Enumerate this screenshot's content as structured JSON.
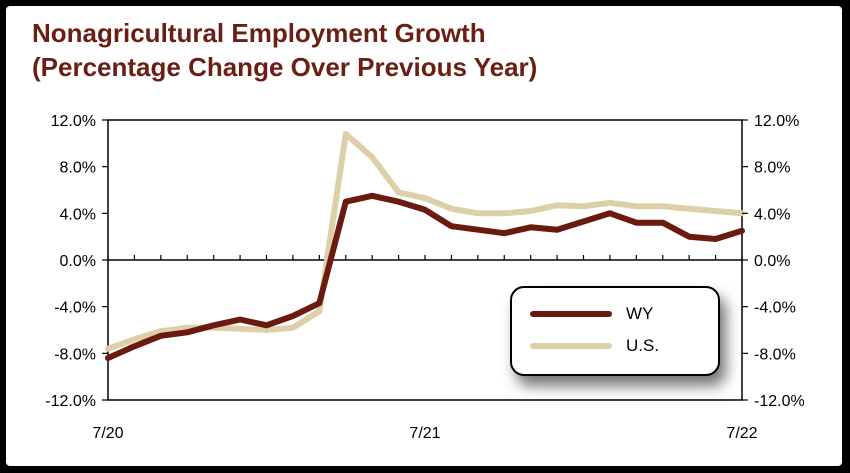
{
  "chart_data": {
    "type": "line",
    "title": "Nonagricultural Employment Growth",
    "subtitle": "(Percentage Change Over Previous Year)",
    "xlabel": "",
    "ylabel": "",
    "x": [
      0,
      1,
      2,
      3,
      4,
      5,
      6,
      7,
      8,
      9,
      10,
      11,
      12,
      13,
      14,
      15,
      16,
      17,
      18,
      19,
      20,
      21,
      22,
      23,
      24
    ],
    "x_tick_labels": [
      {
        "x": 0,
        "label": "7/20"
      },
      {
        "x": 12,
        "label": "7/21"
      },
      {
        "x": 24,
        "label": "7/22"
      }
    ],
    "ylim": [
      -12,
      12
    ],
    "y_ticks": [
      -12,
      -8,
      -4,
      0,
      4,
      8,
      12
    ],
    "y_tick_labels": [
      "-12.0%",
      "-8.0%",
      "-4.0%",
      "0.0%",
      "4.0%",
      "8.0%",
      "12.0%"
    ],
    "grid": false,
    "legend_position": "bottom-right",
    "series": [
      {
        "name": "WY",
        "color": "#6b1a10",
        "values": [
          -8.4,
          -7.4,
          -6.5,
          -6.2,
          -5.6,
          -5.1,
          -5.6,
          -4.8,
          -3.7,
          5.0,
          5.5,
          5.0,
          4.3,
          2.9,
          2.6,
          2.3,
          2.8,
          2.6,
          3.3,
          4.0,
          3.2,
          3.2,
          2.0,
          1.8,
          2.5
        ]
      },
      {
        "name": "U.S.",
        "color": "#ddd0a8",
        "values": [
          -7.6,
          -6.8,
          -6.1,
          -5.8,
          -5.8,
          -5.9,
          -6.0,
          -5.8,
          -4.4,
          10.8,
          8.8,
          5.8,
          5.3,
          4.4,
          4.0,
          4.0,
          4.2,
          4.7,
          4.6,
          4.9,
          4.6,
          4.6,
          4.4,
          4.2,
          4.0
        ]
      }
    ]
  }
}
